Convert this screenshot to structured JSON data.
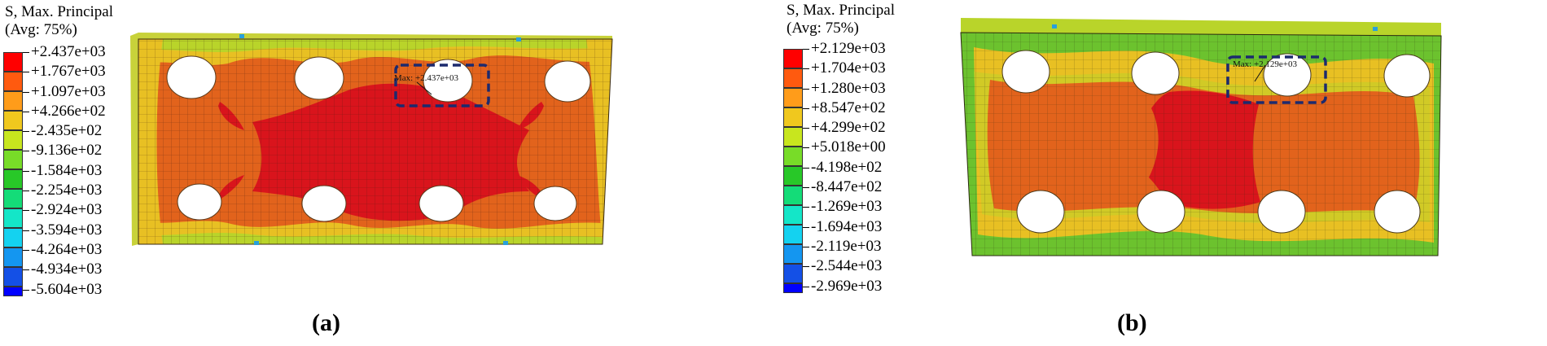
{
  "panels": [
    {
      "id": "a",
      "label": "(a)",
      "legend": {
        "title_line1": "S, Max. Principal",
        "title_line2": "(Avg: 75%)",
        "entries": [
          {
            "value": "+2.437e+03",
            "color": "#ff0000"
          },
          {
            "value": "+1.767e+03",
            "color": "#ff5a0f"
          },
          {
            "value": "+1.097e+03",
            "color": "#ff9c1a"
          },
          {
            "value": "+4.266e+02",
            "color": "#f0c81e"
          },
          {
            "value": "-2.435e+02",
            "color": "#c8e61e"
          },
          {
            "value": "-9.136e+02",
            "color": "#78dc28"
          },
          {
            "value": "-1.584e+03",
            "color": "#28c828"
          },
          {
            "value": "-2.254e+03",
            "color": "#14dc78"
          },
          {
            "value": "-2.924e+03",
            "color": "#14e6c8"
          },
          {
            "value": "-3.594e+03",
            "color": "#14d2f0"
          },
          {
            "value": "-4.264e+03",
            "color": "#1496f0"
          },
          {
            "value": "-4.934e+03",
            "color": "#1450e6"
          },
          {
            "value": "-5.604e+03",
            "color": "#0000ff"
          }
        ]
      },
      "max_annotation": "Max: +2.437e+03"
    },
    {
      "id": "b",
      "label": "(b)",
      "legend": {
        "title_line1": "S, Max. Principal",
        "title_line2": "(Avg: 75%)",
        "entries": [
          {
            "value": "+2.129e+03",
            "color": "#ff0000"
          },
          {
            "value": "+1.704e+03",
            "color": "#ff5a0f"
          },
          {
            "value": "+1.280e+03",
            "color": "#ff9c1a"
          },
          {
            "value": "+8.547e+02",
            "color": "#f0c81e"
          },
          {
            "value": "+4.299e+02",
            "color": "#c8e61e"
          },
          {
            "value": "+5.018e+00",
            "color": "#78dc28"
          },
          {
            "value": "-4.198e+02",
            "color": "#28c828"
          },
          {
            "value": "-8.447e+02",
            "color": "#14dc78"
          },
          {
            "value": "-1.269e+03",
            "color": "#14e6c8"
          },
          {
            "value": "-1.694e+03",
            "color": "#14d2f0"
          },
          {
            "value": "-2.119e+03",
            "color": "#1496f0"
          },
          {
            "value": "-2.544e+03",
            "color": "#1450e6"
          },
          {
            "value": "-2.969e+03",
            "color": "#0000ff"
          }
        ]
      },
      "max_annotation": "Max: +2.129e+03"
    }
  ],
  "contour_colors": {
    "max_red": "#d9141c",
    "orange": "#e2631c",
    "dark_orange": "#d9481a",
    "yellow": "#e8c023",
    "green_yellow": "#b9d42a",
    "green": "#6cc22e",
    "edge_frame": "#c8d23a",
    "hotspot_blue": "#28a0dc",
    "highlight_box": "#1c2a6e"
  }
}
